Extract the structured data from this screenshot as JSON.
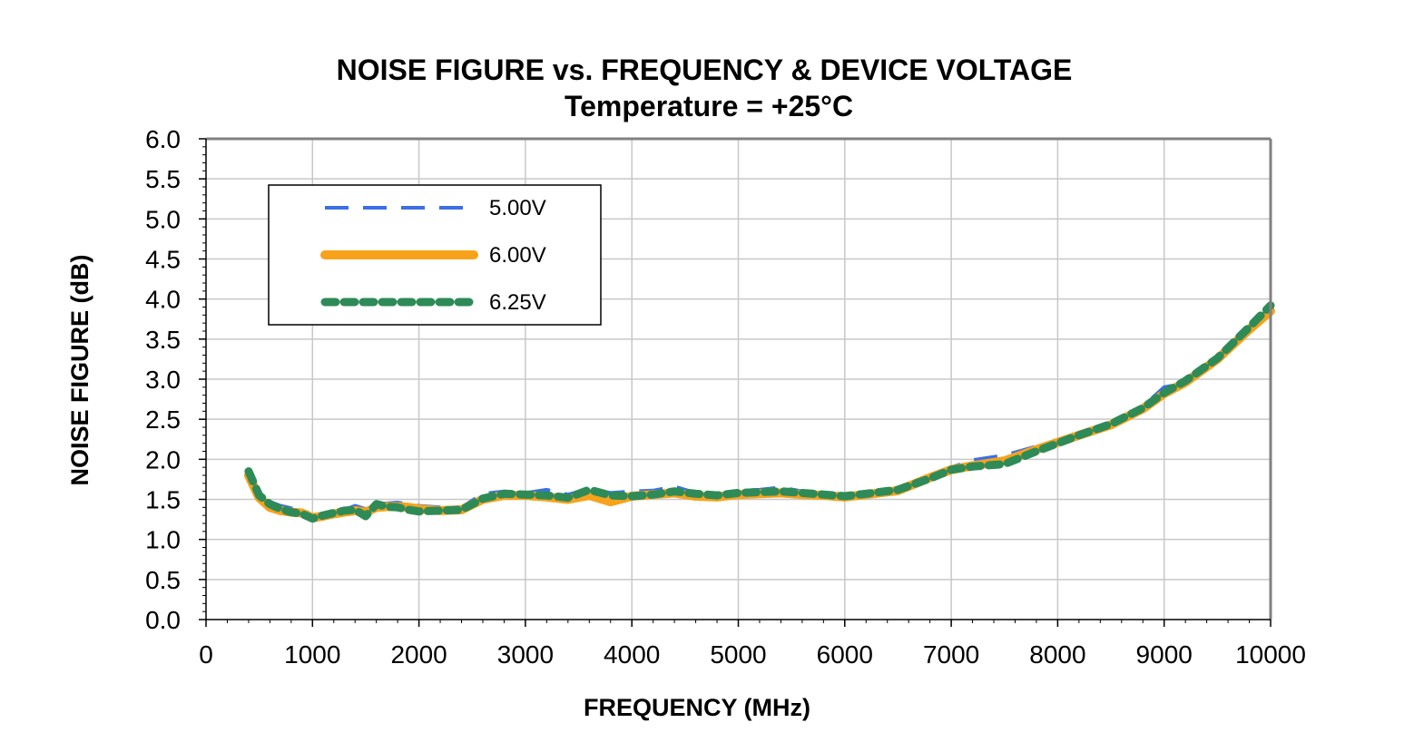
{
  "chart_data": {
    "type": "line",
    "title": "NOISE FIGURE vs. FREQUENCY & DEVICE VOLTAGE",
    "subtitle": "Temperature = +25°C",
    "xlabel": "FREQUENCY (MHz)",
    "ylabel": "NOISE FIGURE (dB)",
    "xlim": [
      0,
      10000
    ],
    "ylim": [
      0,
      6.0
    ],
    "x_ticks": [
      "0",
      "1000",
      "2000",
      "3000",
      "4000",
      "5000",
      "6000",
      "7000",
      "8000",
      "9000",
      "10000"
    ],
    "y_ticks": [
      "0.0",
      "0.5",
      "1.0",
      "1.5",
      "2.0",
      "2.5",
      "3.0",
      "3.5",
      "4.0",
      "4.5",
      "5.0",
      "5.5",
      "6.0"
    ],
    "grid": true,
    "legend_position": "top-left",
    "series": [
      {
        "name": "5.00V",
        "color": "#3b6fe8",
        "style": "dashed",
        "x": [
          400,
          500,
          600,
          700,
          800,
          900,
          1000,
          1100,
          1200,
          1300,
          1400,
          1500,
          1600,
          1700,
          1800,
          1900,
          2000,
          2200,
          2400,
          2600,
          2800,
          3000,
          3200,
          3400,
          3600,
          3800,
          4000,
          4200,
          4400,
          4600,
          4800,
          5000,
          5200,
          5400,
          5600,
          5800,
          6000,
          6200,
          6500,
          6800,
          7000,
          7200,
          7500,
          7800,
          8000,
          8200,
          8500,
          8800,
          9000,
          9200,
          9500,
          9800,
          10000
        ],
        "values": [
          1.85,
          1.58,
          1.47,
          1.42,
          1.39,
          1.38,
          1.3,
          1.32,
          1.35,
          1.37,
          1.42,
          1.38,
          1.44,
          1.45,
          1.46,
          1.44,
          1.42,
          1.4,
          1.4,
          1.57,
          1.6,
          1.58,
          1.62,
          1.56,
          1.63,
          1.58,
          1.6,
          1.61,
          1.66,
          1.58,
          1.56,
          1.61,
          1.62,
          1.65,
          1.6,
          1.57,
          1.55,
          1.58,
          1.63,
          1.8,
          1.9,
          1.99,
          2.05,
          2.16,
          2.24,
          2.33,
          2.45,
          2.66,
          2.9,
          2.95,
          3.25,
          3.65,
          3.88
        ]
      },
      {
        "name": "6.00V",
        "color": "#f7a21b",
        "style": "solid",
        "x": [
          400,
          500,
          600,
          700,
          800,
          900,
          1000,
          1100,
          1200,
          1300,
          1400,
          1500,
          1600,
          1700,
          1800,
          1900,
          2000,
          2200,
          2400,
          2600,
          2800,
          3000,
          3200,
          3400,
          3600,
          3800,
          4000,
          4200,
          4400,
          4600,
          4800,
          5000,
          5200,
          5400,
          5600,
          5800,
          6000,
          6200,
          6500,
          6800,
          7000,
          7200,
          7500,
          7800,
          8000,
          8200,
          8500,
          8800,
          9000,
          9200,
          9500,
          9800,
          10000
        ],
        "values": [
          1.8,
          1.52,
          1.4,
          1.36,
          1.34,
          1.33,
          1.27,
          1.29,
          1.32,
          1.34,
          1.36,
          1.34,
          1.4,
          1.41,
          1.41,
          1.4,
          1.38,
          1.36,
          1.37,
          1.5,
          1.55,
          1.55,
          1.53,
          1.5,
          1.55,
          1.47,
          1.54,
          1.56,
          1.58,
          1.54,
          1.53,
          1.56,
          1.57,
          1.58,
          1.56,
          1.55,
          1.53,
          1.56,
          1.61,
          1.77,
          1.87,
          1.92,
          1.98,
          2.12,
          2.21,
          2.3,
          2.43,
          2.63,
          2.82,
          2.96,
          3.25,
          3.62,
          3.85
        ]
      },
      {
        "name": "6.25V",
        "color": "#2e8b57",
        "style": "dotted",
        "x": [
          400,
          500,
          600,
          700,
          800,
          900,
          1000,
          1100,
          1200,
          1300,
          1400,
          1500,
          1600,
          1700,
          1800,
          1900,
          2000,
          2200,
          2400,
          2600,
          2800,
          3000,
          3200,
          3400,
          3600,
          3800,
          4000,
          4200,
          4400,
          4600,
          4800,
          5000,
          5200,
          5400,
          5600,
          5800,
          6000,
          6200,
          6500,
          6800,
          7000,
          7200,
          7500,
          7800,
          8000,
          8200,
          8500,
          8800,
          9000,
          9200,
          9500,
          9800,
          10000
        ],
        "values": [
          1.85,
          1.55,
          1.44,
          1.38,
          1.34,
          1.32,
          1.26,
          1.3,
          1.33,
          1.36,
          1.37,
          1.29,
          1.44,
          1.41,
          1.4,
          1.37,
          1.35,
          1.36,
          1.37,
          1.51,
          1.57,
          1.56,
          1.55,
          1.52,
          1.62,
          1.55,
          1.54,
          1.56,
          1.6,
          1.57,
          1.55,
          1.58,
          1.59,
          1.6,
          1.58,
          1.56,
          1.54,
          1.57,
          1.62,
          1.76,
          1.87,
          1.91,
          1.94,
          2.1,
          2.2,
          2.3,
          2.44,
          2.64,
          2.83,
          2.98,
          3.26,
          3.65,
          3.92
        ]
      }
    ]
  }
}
